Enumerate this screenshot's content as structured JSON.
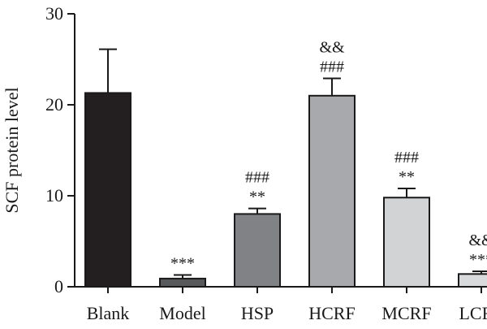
{
  "chart_data": {
    "type": "bar",
    "title": "",
    "xlabel": "",
    "ylabel": "SCF protein level",
    "ylim": [
      0,
      30
    ],
    "yticks": [
      0,
      10,
      20,
      30
    ],
    "grid": false,
    "categories": [
      "Blank",
      "Model",
      "HSP",
      "HCRF",
      "MCRF",
      "LCRF"
    ],
    "values": [
      21.3,
      0.9,
      8.0,
      21.0,
      9.8,
      1.4
    ],
    "errors": [
      4.8,
      0.4,
      0.6,
      1.9,
      1.0,
      0.3
    ],
    "bar_colors": [
      "#231f20",
      "#58595b",
      "#808285",
      "#a7a9ac",
      "#d1d3d4",
      "#d9dadb"
    ],
    "annotations": [
      [],
      [
        "***"
      ],
      [
        "###",
        "**"
      ],
      [
        "&&",
        "###"
      ],
      [
        "###",
        "**"
      ],
      [
        "&&",
        "***"
      ]
    ]
  }
}
